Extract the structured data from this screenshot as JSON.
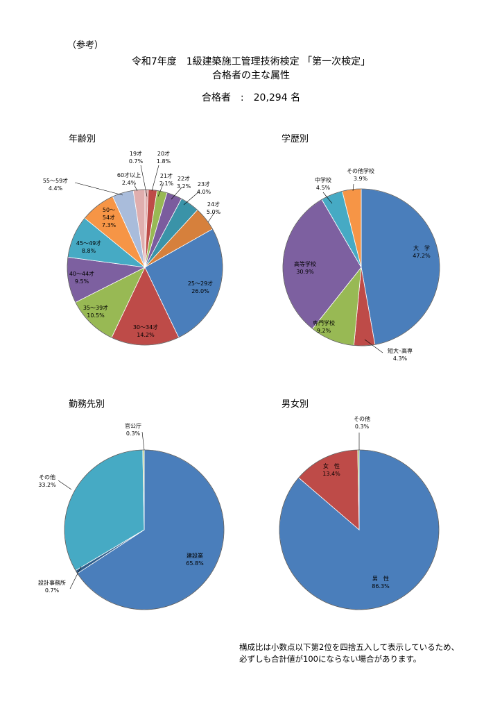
{
  "header": {
    "reference": "（参考）",
    "title_line1": "令和7年度　1級建築施工管理技術検定 「第一次検定」",
    "title_line2": "合格者の主な属性",
    "total_label": "合格者　:　20,294 名"
  },
  "footnote": {
    "line1": "構成比は小数点以下第2位を四捨五入して表示しているため、",
    "line2": "必ずしも合計値が100にならない場合があります。"
  },
  "colors": {
    "blue": "#4a7ebb",
    "red": "#be4b48",
    "green": "#98b954",
    "purple": "#7d60a0",
    "teal": "#46aac4",
    "orange": "#f69546",
    "lightblue": "#a9bcdb",
    "pink": "#e0aeae",
    "olive": "#b9c97b",
    "darkpurple": "#7b5c9e",
    "darkteal": "#3a93a8",
    "darkorange": "#d6803c"
  },
  "chart_data": [
    {
      "type": "pie",
      "title": "年齢別",
      "slices": [
        {
          "label": "19才",
          "value": 0.7,
          "pct": "0.7%",
          "color": "#e0aeae"
        },
        {
          "label": "20才",
          "value": 1.8,
          "pct": "1.8%",
          "color": "#be4b48"
        },
        {
          "label": "21才",
          "value": 2.1,
          "pct": "2.1%",
          "color": "#98b954"
        },
        {
          "label": "22才",
          "value": 3.2,
          "pct": "3.2%",
          "color": "#7b5c9e"
        },
        {
          "label": "23才",
          "value": 4.0,
          "pct": "4.0%",
          "color": "#3a93a8"
        },
        {
          "label": "24才",
          "value": 5.0,
          "pct": "5.0%",
          "color": "#d6803c"
        },
        {
          "label": "25～29才",
          "value": 26.0,
          "pct": "26.0%",
          "color": "#4a7ebb"
        },
        {
          "label": "30～34才",
          "value": 14.2,
          "pct": "14.2%",
          "color": "#be4b48"
        },
        {
          "label": "35～39才",
          "value": 10.5,
          "pct": "10.5%",
          "color": "#98b954"
        },
        {
          "label": "40～44才",
          "value": 9.5,
          "pct": "9.5%",
          "color": "#7d60a0"
        },
        {
          "label": "45～49才",
          "value": 8.8,
          "pct": "8.8%",
          "color": "#46aac4"
        },
        {
          "label": "50～\n54才",
          "value": 7.3,
          "pct": "7.3%",
          "color": "#f69546"
        },
        {
          "label": "55～59才",
          "value": 4.4,
          "pct": "4.4%",
          "color": "#a9bcdb"
        },
        {
          "label": "60才以上",
          "value": 2.4,
          "pct": "2.4%",
          "color": "#e0aeae"
        }
      ]
    },
    {
      "type": "pie",
      "title": "学歴別",
      "slices": [
        {
          "label": "大　学",
          "value": 47.2,
          "pct": "47.2%",
          "color": "#4a7ebb"
        },
        {
          "label": "短大･高専",
          "value": 4.3,
          "pct": "4.3%",
          "color": "#be4b48"
        },
        {
          "label": "専門学校",
          "value": 9.2,
          "pct": "9.2%",
          "color": "#98b954"
        },
        {
          "label": "高等学校",
          "value": 30.9,
          "pct": "30.9%",
          "color": "#7d60a0"
        },
        {
          "label": "中学校",
          "value": 4.5,
          "pct": "4.5%",
          "color": "#46aac4"
        },
        {
          "label": "その他学校",
          "value": 3.9,
          "pct": "3.9%",
          "color": "#f69546"
        }
      ]
    },
    {
      "type": "pie",
      "title": "勤務先別",
      "slices": [
        {
          "label": "建設業",
          "value": 65.8,
          "pct": "65.8%",
          "color": "#4a7ebb"
        },
        {
          "label": "設計事務所",
          "value": 0.7,
          "pct": "0.7%",
          "color": "#2f5d8a"
        },
        {
          "label": "その他",
          "value": 33.2,
          "pct": "33.2%",
          "color": "#46aac4"
        },
        {
          "label": "官公庁",
          "value": 0.3,
          "pct": "0.3%",
          "color": "#b9c97b"
        }
      ]
    },
    {
      "type": "pie",
      "title": "男女別",
      "slices": [
        {
          "label": "男　性",
          "value": 86.3,
          "pct": "86.3%",
          "color": "#4a7ebb"
        },
        {
          "label": "女　性",
          "value": 13.4,
          "pct": "13.4%",
          "color": "#be4b48"
        },
        {
          "label": "その他",
          "value": 0.3,
          "pct": "0.3%",
          "color": "#98b954"
        }
      ]
    }
  ]
}
